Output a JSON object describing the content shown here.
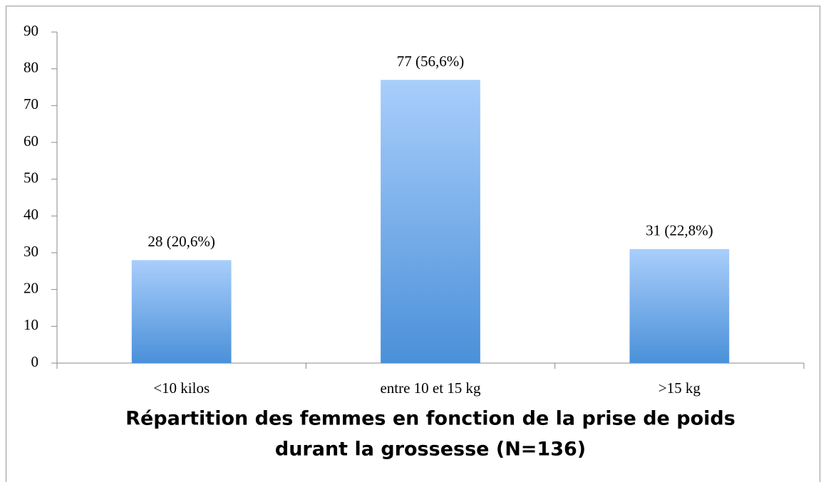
{
  "chart_data": {
    "type": "bar",
    "title": [
      "Répartition des femmes en fonction de la prise de poids",
      "durant la grossesse (N=136)"
    ],
    "categories": [
      "<10 kilos",
      "entre 10 et 15 kg",
      ">15 kg"
    ],
    "values": [
      28,
      77,
      31
    ],
    "value_labels": [
      "28 (20,6%)",
      "77 (56,6%)",
      "31 (22,8%)"
    ],
    "gradient": [
      "#a9cefb",
      "#4a90d9"
    ],
    "ylim": [
      0,
      90
    ],
    "yticks": [
      0,
      10,
      20,
      30,
      40,
      50,
      60,
      70,
      80,
      90
    ],
    "grid": false
  }
}
